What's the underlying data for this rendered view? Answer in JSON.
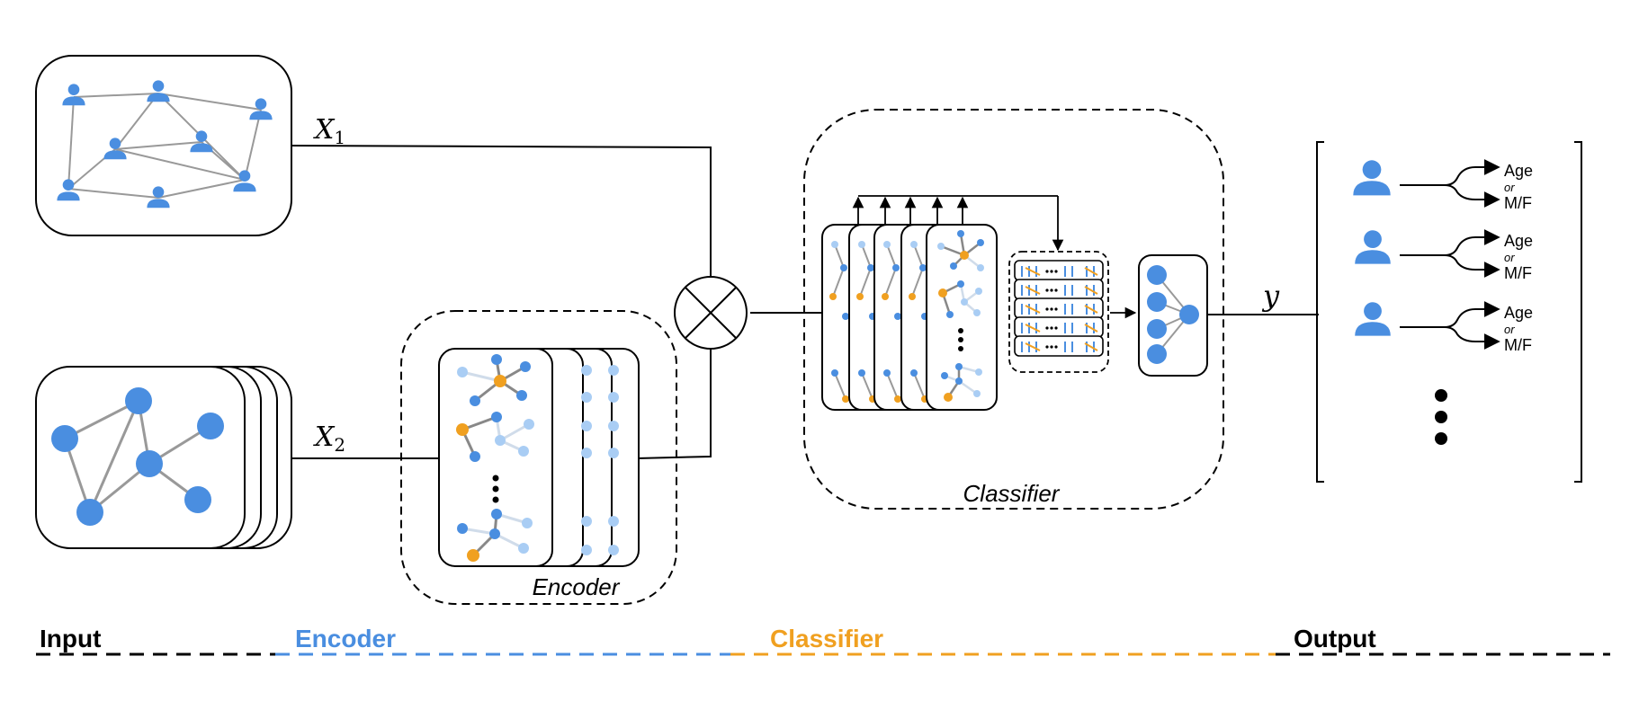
{
  "inputs": {
    "x1_label": "X",
    "x1_sub": "1",
    "x2_label": "X",
    "x2_sub": "2"
  },
  "encoder": {
    "box_label": "Encoder"
  },
  "classifier": {
    "box_label": "Classifier"
  },
  "output": {
    "y_label": "y",
    "rows": [
      {
        "top": "Age",
        "mid": "or",
        "bottom": "M/F"
      },
      {
        "top": "Age",
        "mid": "or",
        "bottom": "M/F"
      },
      {
        "top": "Age",
        "mid": "or",
        "bottom": "M/F"
      }
    ]
  },
  "stages": [
    {
      "label": "Input",
      "color": "#000000"
    },
    {
      "label": "Encoder",
      "color": "#4a8ee0"
    },
    {
      "label": "Classifier",
      "color": "#f0a020"
    },
    {
      "label": "Output",
      "color": "#000000"
    }
  ],
  "colors": {
    "node_blue": "#4a8ee0",
    "node_light": "#a9cdf4",
    "node_orange": "#f0a020",
    "edge_gray": "#999999"
  }
}
